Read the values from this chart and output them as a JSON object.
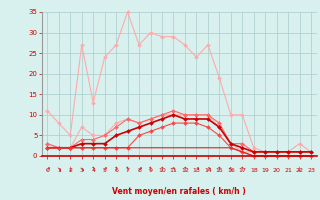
{
  "hours": [
    0,
    1,
    2,
    3,
    4,
    5,
    6,
    7,
    8,
    9,
    10,
    11,
    12,
    13,
    14,
    15,
    16,
    17,
    18,
    19,
    20,
    21,
    22,
    23
  ],
  "series": [
    {
      "label": "rafales_max",
      "color": "#ffaaaa",
      "linewidth": 0.8,
      "marker": "D",
      "markersize": 2.0,
      "values": [
        11,
        8,
        5,
        27,
        13,
        24,
        27,
        35,
        27,
        30,
        29,
        29,
        27,
        24,
        27,
        19,
        10,
        10,
        2,
        1,
        1,
        1,
        3,
        1
      ]
    },
    {
      "label": "rafales_moy",
      "color": "#ffaaaa",
      "linewidth": 0.8,
      "marker": "D",
      "markersize": 2.0,
      "values": [
        3,
        2,
        2,
        7,
        5,
        5,
        8,
        9,
        8,
        9,
        10,
        10,
        10,
        10,
        10,
        7,
        3,
        1,
        1,
        1,
        1,
        1,
        1,
        1
      ]
    },
    {
      "label": "vent_max",
      "color": "#ff6666",
      "linewidth": 0.8,
      "marker": "D",
      "markersize": 2.0,
      "values": [
        3,
        2,
        2,
        4,
        4,
        5,
        7,
        9,
        8,
        9,
        10,
        11,
        10,
        10,
        10,
        8,
        3,
        3,
        1,
        1,
        1,
        1,
        1,
        1
      ]
    },
    {
      "label": "vent_moy",
      "color": "#cc0000",
      "linewidth": 1.2,
      "marker": "D",
      "markersize": 2.0,
      "values": [
        2,
        2,
        2,
        3,
        3,
        3,
        5,
        6,
        7,
        8,
        9,
        10,
        9,
        9,
        9,
        7,
        3,
        2,
        1,
        1,
        1,
        1,
        1,
        1
      ]
    },
    {
      "label": "vent_min",
      "color": "#ff4444",
      "linewidth": 0.8,
      "marker": "D",
      "markersize": 2.0,
      "values": [
        2,
        2,
        2,
        2,
        2,
        2,
        2,
        2,
        5,
        6,
        7,
        8,
        8,
        8,
        7,
        5,
        2,
        1,
        0,
        0,
        0,
        0,
        0,
        0
      ]
    },
    {
      "label": "min_line",
      "color": "#dd2222",
      "linewidth": 0.8,
      "marker": null,
      "markersize": 0,
      "values": [
        2,
        2,
        2,
        2,
        2,
        2,
        2,
        2,
        2,
        2,
        2,
        2,
        2,
        2,
        2,
        2,
        2,
        1,
        0,
        0,
        0,
        0,
        0,
        0
      ]
    }
  ],
  "wind_arrows": [
    "NE",
    "SE",
    "S",
    "SE",
    "N",
    "NE",
    "N",
    "N",
    "NE",
    "N",
    "N",
    "NW",
    "N",
    "NE",
    "NE",
    "N",
    "NW",
    "N",
    "",
    "",
    "",
    "",
    "S",
    ""
  ],
  "xlabel": "Vent moyen/en rafales ( km/h )",
  "ylim": [
    0,
    35
  ],
  "yticks": [
    0,
    5,
    10,
    15,
    20,
    25,
    30,
    35
  ],
  "xlim": [
    -0.5,
    23.5
  ],
  "xticks": [
    0,
    1,
    2,
    3,
    4,
    5,
    6,
    7,
    8,
    9,
    10,
    11,
    12,
    13,
    14,
    15,
    16,
    17,
    18,
    19,
    20,
    21,
    22,
    23
  ],
  "bg_color": "#d8f0ee",
  "grid_color": "#aacccc",
  "tick_color": "#cc0000",
  "label_color": "#cc0000"
}
